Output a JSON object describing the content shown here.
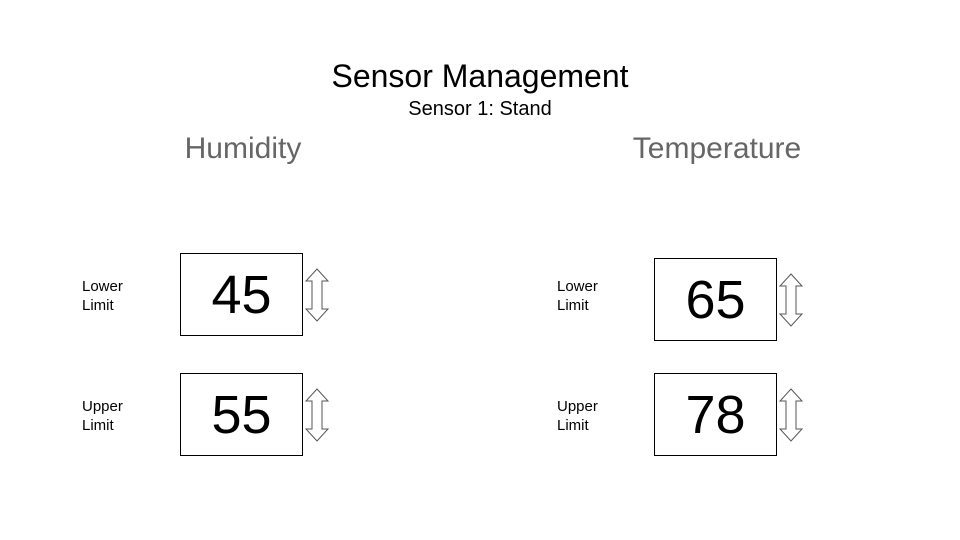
{
  "header": {
    "title": "Sensor Management",
    "subtitle": "Sensor 1: Stand"
  },
  "humidity": {
    "title": "Humidity",
    "lower": {
      "label_line1": "Lower",
      "label_line2": "Limit",
      "value": "45"
    },
    "upper": {
      "label_line1": "Upper",
      "label_line2": "Limit",
      "value": "55"
    }
  },
  "temperature": {
    "title": "Temperature",
    "lower": {
      "label_line1": "Lower",
      "label_line2": "Limit",
      "value": "65"
    },
    "upper": {
      "label_line1": "Upper",
      "label_line2": "Limit",
      "value": "78"
    }
  },
  "icons": {
    "stepper": "up-down-arrow-icon"
  },
  "colors": {
    "section_title": "#666666",
    "border": "#000000"
  }
}
